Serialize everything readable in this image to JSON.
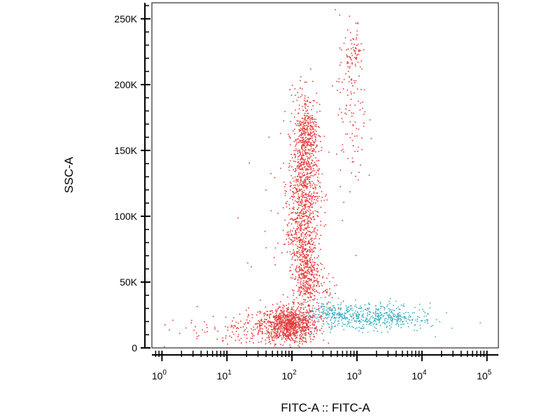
{
  "chart_data": {
    "type": "scatter",
    "xlabel": "FITC-A :: FITC-A",
    "ylabel": "SSC-A",
    "x_scale": "log",
    "xlim": [
      0.7,
      150000
    ],
    "ylim": [
      0,
      262144
    ],
    "grid": false,
    "legend": "none",
    "x_ticks": [
      {
        "value": 1,
        "base": "10",
        "exp": "0"
      },
      {
        "value": 10,
        "base": "10",
        "exp": "1"
      },
      {
        "value": 100,
        "base": "10",
        "exp": "2"
      },
      {
        "value": 1000,
        "base": "10",
        "exp": "3"
      },
      {
        "value": 10000,
        "base": "10",
        "exp": "4"
      },
      {
        "value": 100000,
        "base": "10",
        "exp": "5"
      }
    ],
    "y_ticks": [
      {
        "value": 0,
        "label": "0"
      },
      {
        "value": 50000,
        "label": "50K"
      },
      {
        "value": 100000,
        "label": "100K"
      },
      {
        "value": 150000,
        "label": "150K"
      },
      {
        "value": 200000,
        "label": "200K"
      },
      {
        "value": 250000,
        "label": "250K"
      }
    ],
    "series": [
      {
        "color": "#e63a3a",
        "values": [
          {
            "x": 90,
            "y": 18000,
            "n": 900,
            "sx": 0.22,
            "sy": 7000
          },
          {
            "x": 150,
            "y": 125000,
            "n": 800,
            "sx": 0.12,
            "sy": 30000
          },
          {
            "x": 170,
            "y": 165000,
            "n": 220,
            "sx": 0.08,
            "sy": 15000
          },
          {
            "x": 160,
            "y": 55000,
            "n": 350,
            "sx": 0.1,
            "sy": 12000
          },
          {
            "x": 140,
            "y": 85000,
            "n": 200,
            "sx": 0.12,
            "sy": 12000
          },
          {
            "x": 30,
            "y": 16000,
            "n": 150,
            "sx": 0.35,
            "sy": 6000
          },
          {
            "x": 800,
            "y": 180000,
            "n": 120,
            "sx": 0.12,
            "sy": 35000
          },
          {
            "x": 900,
            "y": 225000,
            "n": 60,
            "sx": 0.06,
            "sy": 8000
          },
          {
            "x": 350,
            "y": 40000,
            "n": 40,
            "sx": 0.15,
            "sy": 8000
          },
          {
            "x": 5,
            "y": 12000,
            "n": 30,
            "sx": 0.4,
            "sy": 6000
          },
          {
            "x": 60,
            "y": 70000,
            "n": 30,
            "sx": 0.35,
            "sy": 35000
          }
        ]
      },
      {
        "color": "#3fb1c2",
        "values": [
          {
            "x": 1500,
            "y": 24000,
            "n": 420,
            "sx": 0.4,
            "sy": 5000
          },
          {
            "x": 350,
            "y": 27000,
            "n": 120,
            "sx": 0.15,
            "sy": 5000
          },
          {
            "x": 5000,
            "y": 22000,
            "n": 60,
            "sx": 0.2,
            "sy": 4000
          }
        ]
      }
    ]
  }
}
